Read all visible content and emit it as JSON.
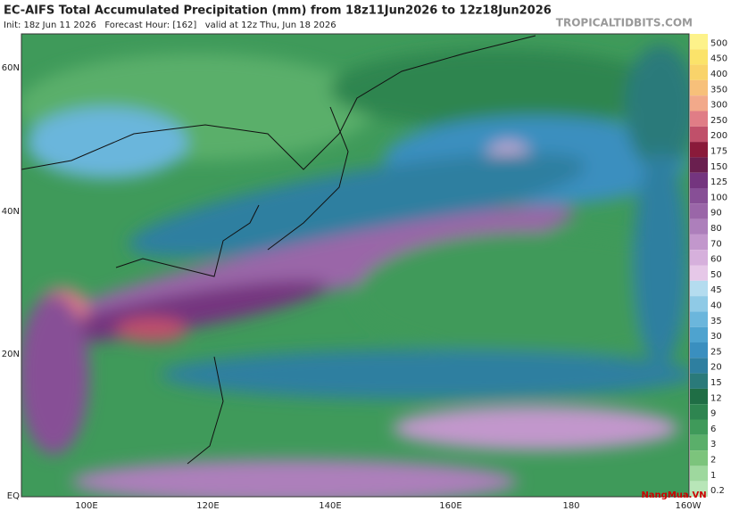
{
  "header": {
    "title": "EC-AIFS Total Accumulated Precipitation (mm) from 18z11Jun2026 to 12z18Jun2026",
    "subtitle": "Init: 18z Jun 11 2026   Forecast Hour: [162]   valid at 12z Thu, Jun 18 2026",
    "site": "TROPICALTIDBITS.COM"
  },
  "map": {
    "lat_labels": [
      "60N",
      "40N",
      "20N",
      "EQ"
    ],
    "lon_labels": [
      "100E",
      "120E",
      "140E",
      "160E",
      "180",
      "160W"
    ]
  },
  "colorbar": {
    "labels": [
      500,
      450,
      400,
      350,
      300,
      250,
      200,
      175,
      150,
      125,
      100,
      90,
      80,
      70,
      60,
      50,
      45,
      40,
      35,
      30,
      25,
      20,
      15,
      12,
      9,
      6,
      3,
      2,
      1,
      0.2
    ],
    "colors": [
      "#fdf28a",
      "#fbe36a",
      "#f9d36a",
      "#f7c07a",
      "#f2a98a",
      "#e07d86",
      "#c0506a",
      "#8a1a3a",
      "#6a1f4f",
      "#74357f",
      "#874f96",
      "#9a66a8",
      "#ad7fbb",
      "#c297cc",
      "#d6b0dc",
      "#e6c8e8",
      "#b4dcef",
      "#8fcae6",
      "#6bb6dc",
      "#4ea3cf",
      "#3a8fbf",
      "#2e7fa0",
      "#2a7a7a",
      "#1f6e45",
      "#2e8550",
      "#3f9a5a",
      "#5aaf6a",
      "#7cc47c",
      "#9ed89e",
      "#b8e6b8"
    ]
  },
  "watermark": "NangMua.VN"
}
